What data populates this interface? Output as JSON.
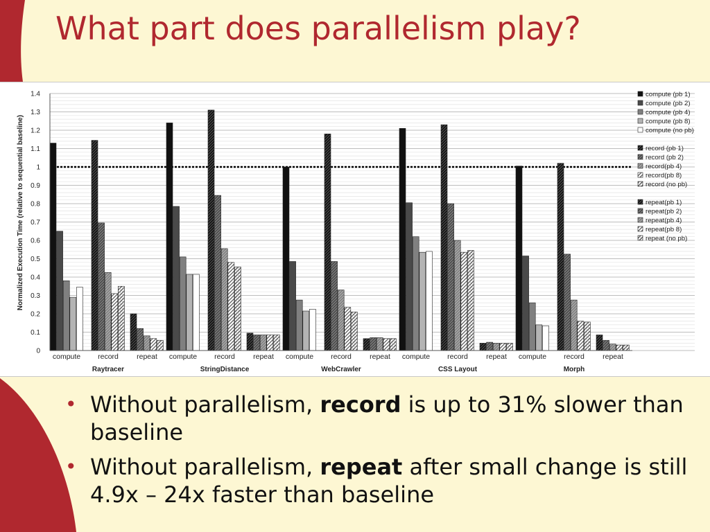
{
  "slide": {
    "title": "What part does parallelism play?",
    "accent_color": "#b0282f",
    "background_color": "#fdf7d3",
    "bullet_icon": "bullet-dot-icon",
    "bullets": [
      {
        "before": "Without parallelism, ",
        "bold": "record",
        "after": " is up to 31% slower than baseline"
      },
      {
        "before": "Without parallelism, ",
        "bold": "repeat",
        "after": " after small change is still 4.9x – 24x faster than baseline"
      }
    ]
  },
  "chart_data": {
    "type": "bar",
    "ylabel": "Normalized Execution Time (relative to sequential baseline)",
    "xlabel": "",
    "ylim": [
      0,
      1.4
    ],
    "yticks": [
      "0",
      "0.1",
      "0.2",
      "0.3",
      "0.4",
      "0.5",
      "0.6",
      "0.7",
      "0.8",
      "0.9",
      "1",
      "1.1",
      "1.2",
      "1.3",
      "1.4"
    ],
    "grid": true,
    "reference_line": 1,
    "legend_position": "right",
    "phase_labels": [
      "compute",
      "record",
      "repeat"
    ],
    "series_fills": [
      "#111111",
      "#4a4a4a",
      "#808080",
      "#b4b4b4",
      "#ffffff"
    ],
    "legend_groups": [
      {
        "phase": "compute",
        "style": "solid",
        "entries": [
          "compute (pb 1)",
          "compute (pb 2)",
          "compute (pb 4)",
          "compute (pb 8)",
          "compute (no pb)"
        ]
      },
      {
        "phase": "record",
        "style": "hatched",
        "entries": [
          "record (pb 1)",
          "record (pb 2)",
          "record(pb 4)",
          "record(pb 8)",
          "record (no pb)"
        ]
      },
      {
        "phase": "repeat",
        "style": "hatched",
        "entries": [
          "repeat(pb 1)",
          "repeat(pb 2)",
          "repeat(pb 4)",
          "repeat(pb 8)",
          "repeat (no pb)"
        ]
      }
    ],
    "groups": [
      {
        "name": "Raytracer",
        "compute": [
          1.13,
          0.65,
          0.38,
          0.29,
          0.345
        ],
        "record": [
          1.145,
          0.695,
          0.425,
          0.31,
          0.35
        ],
        "repeat": [
          0.2,
          0.12,
          0.08,
          0.065,
          0.055
        ]
      },
      {
        "name": "StringDistance",
        "compute": [
          1.24,
          0.785,
          0.51,
          0.415,
          0.415
        ],
        "record": [
          1.31,
          0.845,
          0.555,
          0.48,
          0.455
        ],
        "repeat": [
          0.095,
          0.085,
          0.085,
          0.085,
          0.085
        ]
      },
      {
        "name": "WebCrawler",
        "compute": [
          1.0,
          0.485,
          0.275,
          0.215,
          0.225
        ],
        "record": [
          1.18,
          0.485,
          0.33,
          0.235,
          0.21
        ],
        "repeat": [
          0.065,
          0.07,
          0.07,
          0.065,
          0.065
        ]
      },
      {
        "name": "CSS Layout",
        "compute": [
          1.21,
          0.805,
          0.62,
          0.535,
          0.54
        ],
        "record": [
          1.23,
          0.8,
          0.6,
          0.535,
          0.545
        ],
        "repeat": [
          0.04,
          0.045,
          0.04,
          0.04,
          0.04
        ]
      },
      {
        "name": "Morph",
        "compute": [
          1.005,
          0.515,
          0.26,
          0.14,
          0.135
        ],
        "record": [
          1.02,
          0.525,
          0.275,
          0.16,
          0.155
        ],
        "repeat": [
          0.085,
          0.055,
          0.035,
          0.03,
          0.03
        ]
      }
    ]
  }
}
